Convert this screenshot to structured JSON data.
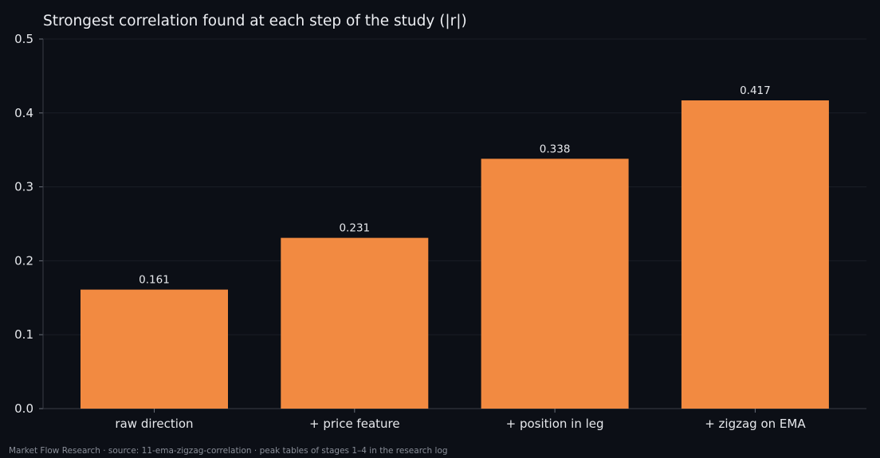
{
  "chart_data": {
    "type": "bar",
    "title": "Strongest correlation found at each step of the study (|r|)",
    "xlabel": "",
    "ylabel": "",
    "categories": [
      "raw direction",
      "+ price feature",
      "+ position in leg",
      "+ zigzag on EMA"
    ],
    "values": [
      0.161,
      0.231,
      0.338,
      0.417
    ],
    "data_labels": [
      "0.161",
      "0.231",
      "0.338",
      "0.417"
    ],
    "ylim": [
      0,
      0.5
    ],
    "yticks": [
      0.0,
      0.1,
      0.2,
      0.3,
      0.4,
      0.5
    ],
    "ytick_labels": [
      "0.0",
      "0.1",
      "0.2",
      "0.3",
      "0.4",
      "0.5"
    ],
    "grid": true,
    "legend": "none",
    "bar_color": "#f28a41",
    "background_color": "#0c0f16"
  },
  "footer": {
    "note": "Market Flow Research · source: 11-ema-zigzag-correlation · peak tables of stages 1–4 in the research log"
  }
}
